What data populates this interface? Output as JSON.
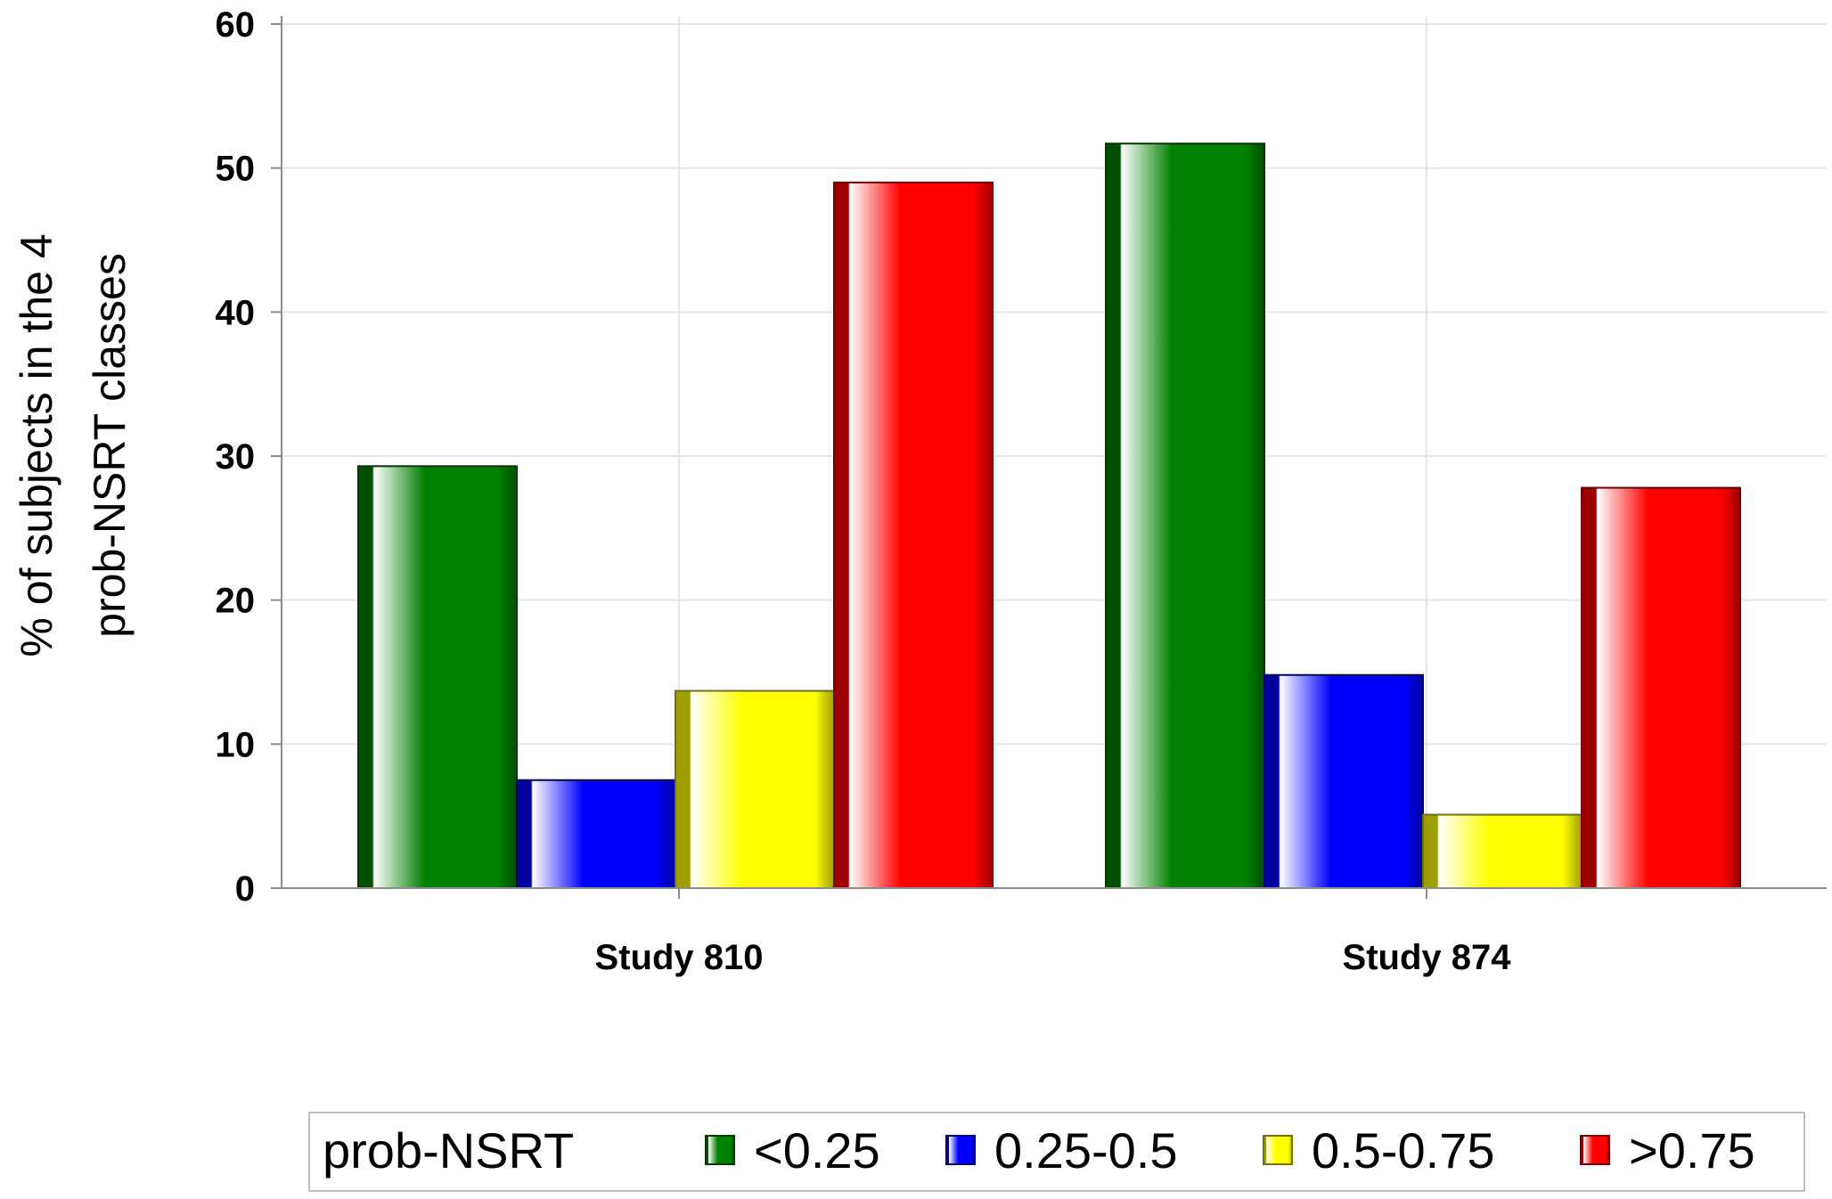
{
  "chart_data": {
    "type": "bar",
    "categories": [
      "Study 810",
      "Study 874"
    ],
    "series": [
      {
        "name": "<0.25",
        "color": "#008000",
        "values": [
          29.3,
          51.7
        ]
      },
      {
        "name": "0.25-0.5",
        "color": "#0000ff",
        "values": [
          7.5,
          14.8
        ]
      },
      {
        "name": "0.5-0.75",
        "color": "#ffff00",
        "values": [
          13.7,
          5.1
        ]
      },
      {
        "name": ">0.75",
        "color": "#ff0000",
        "values": [
          49.0,
          27.8
        ]
      }
    ],
    "ylabel_lines": [
      "% of subjects in the 4",
      "prob-NSRT classes"
    ],
    "xlabel": "",
    "ylim": [
      0,
      60
    ],
    "yticks": [
      0,
      10,
      20,
      30,
      40,
      50,
      60
    ],
    "grid": true,
    "legend": {
      "title": "prob-NSRT",
      "position": "bottom"
    }
  }
}
